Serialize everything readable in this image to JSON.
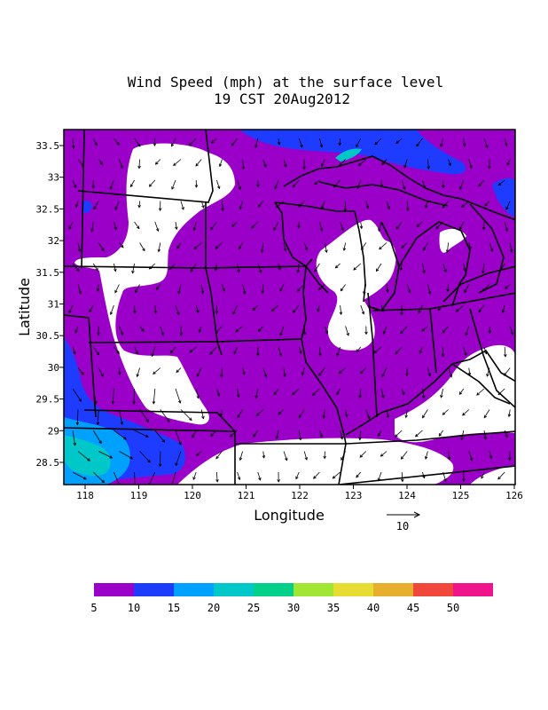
{
  "title_line1": "Wind Speed (mph) at the surface level",
  "title_line2": "19 CST 20Aug2012",
  "x_axis_label": "Longitude",
  "y_axis_label": "Latitude",
  "x_ticks": [
    "118",
    "119",
    "120",
    "121",
    "122",
    "123",
    "124",
    "125",
    "126"
  ],
  "y_ticks": [
    "33.5",
    "33",
    "32.5",
    "32",
    "31.5",
    "31",
    "30.5",
    "30",
    "29.5",
    "29",
    "28.5"
  ],
  "reference_vector": {
    "label": "10"
  },
  "colorbar": {
    "colors": [
      "#9a00c8",
      "#1e3cff",
      "#00a0ff",
      "#00c8c8",
      "#00d08a",
      "#a0e632",
      "#e6dc32",
      "#e6af2d",
      "#f0463c",
      "#f0148c"
    ],
    "labels": [
      "5",
      "10",
      "15",
      "20",
      "25",
      "30",
      "35",
      "40",
      "45",
      "50"
    ]
  },
  "colors": {
    "calm_region": "#ffffff",
    "border_line": "#000000"
  }
}
